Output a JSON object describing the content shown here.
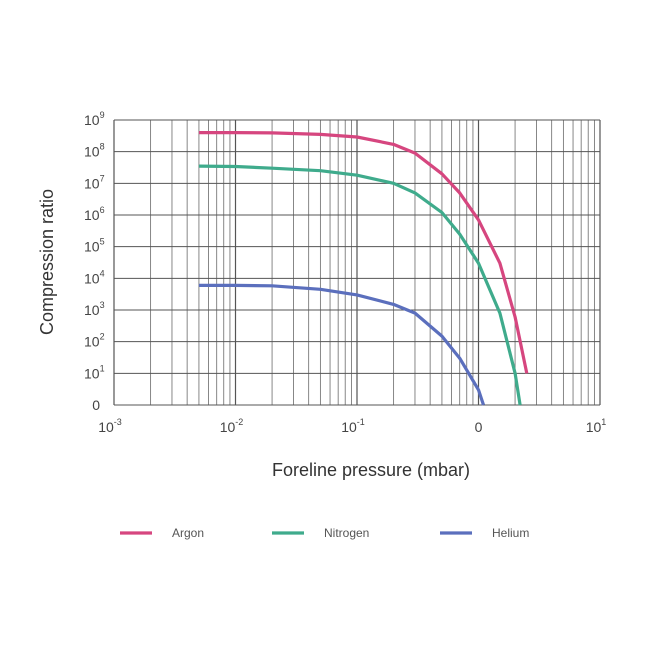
{
  "chart_data": {
    "type": "line",
    "title": "",
    "xlabel": "Foreline pressure (mbar)",
    "ylabel": "Compression ratio",
    "x_scale": "log",
    "y_scale": "log",
    "xlim": [
      0.001,
      10
    ],
    "ylim": [
      1,
      1000000000
    ],
    "grid": true,
    "x_ticks": [
      {
        "value": 0.001,
        "base": "10",
        "exp": "-3"
      },
      {
        "value": 0.01,
        "base": "10",
        "exp": "-2"
      },
      {
        "value": 0.1,
        "base": "10",
        "exp": "-1"
      },
      {
        "value": 1,
        "base": "0",
        "exp": ""
      },
      {
        "value": 10,
        "base": "10",
        "exp": "1"
      }
    ],
    "y_ticks": [
      {
        "value": 1,
        "base": "0",
        "exp": ""
      },
      {
        "value": 10,
        "base": "10",
        "exp": "1"
      },
      {
        "value": 100,
        "base": "10",
        "exp": "2"
      },
      {
        "value": 1000,
        "base": "10",
        "exp": "3"
      },
      {
        "value": 10000,
        "base": "10",
        "exp": "4"
      },
      {
        "value": 100000,
        "base": "10",
        "exp": "5"
      },
      {
        "value": 1000000,
        "base": "10",
        "exp": "6"
      },
      {
        "value": 10000000,
        "base": "10",
        "exp": "7"
      },
      {
        "value": 100000000,
        "base": "10",
        "exp": "8"
      },
      {
        "value": 1000000000,
        "base": "10",
        "exp": "9"
      }
    ],
    "legend_position": "bottom",
    "series": [
      {
        "name": "Argon",
        "color": "#d6467f",
        "x": [
          0.005,
          0.01,
          0.02,
          0.05,
          0.1,
          0.2,
          0.3,
          0.5,
          0.7,
          1.0,
          1.5,
          2.0,
          2.5
        ],
        "y": [
          400000000,
          400000000,
          390000000,
          350000000,
          290000000,
          170000000,
          90000000,
          20000000,
          5000000,
          700000,
          30000,
          600,
          10
        ]
      },
      {
        "name": "Nitrogen",
        "color": "#3fab8c",
        "x": [
          0.005,
          0.01,
          0.02,
          0.05,
          0.1,
          0.2,
          0.3,
          0.5,
          0.7,
          1.0,
          1.5,
          2.0,
          2.2
        ],
        "y": [
          35000000,
          34000000,
          30000000,
          25000000,
          18000000,
          10000000,
          5000000,
          1200000,
          250000,
          30000,
          800,
          10,
          1
        ]
      },
      {
        "name": "Helium",
        "color": "#5b6fbd",
        "x": [
          0.005,
          0.01,
          0.02,
          0.05,
          0.1,
          0.2,
          0.3,
          0.5,
          0.7,
          1.0,
          1.1
        ],
        "y": [
          6000,
          6000,
          5800,
          4500,
          3000,
          1500,
          800,
          150,
          30,
          3,
          1
        ]
      }
    ]
  }
}
